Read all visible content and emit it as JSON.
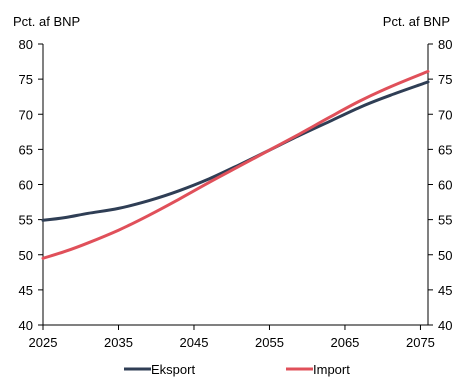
{
  "chart_data": {
    "type": "line",
    "ylabel_left": "Pct. af BNP",
    "ylabel_right": "Pct. af BNP",
    "xlim": [
      2025,
      2076
    ],
    "ylim": [
      40,
      80
    ],
    "x_ticks": [
      2025,
      2035,
      2045,
      2055,
      2065,
      2075
    ],
    "y_ticks": [
      40,
      45,
      50,
      55,
      60,
      65,
      70,
      75,
      80
    ],
    "grid": false,
    "legend_position": "bottom",
    "series": [
      {
        "name": "Eksport",
        "color": "#2f3e55",
        "x": [
          2025,
          2028,
          2031,
          2035,
          2039,
          2043,
          2047,
          2051,
          2055,
          2059,
          2063,
          2067,
          2071,
          2076
        ],
        "values": [
          54.9,
          55.3,
          55.9,
          56.6,
          57.7,
          59.1,
          60.8,
          62.8,
          64.9,
          67.0,
          69.0,
          71.0,
          72.7,
          74.6
        ]
      },
      {
        "name": "Import",
        "color": "#e0505a",
        "x": [
          2025,
          2028,
          2031,
          2035,
          2039,
          2043,
          2047,
          2051,
          2055,
          2059,
          2063,
          2067,
          2071,
          2076
        ],
        "values": [
          49.5,
          50.5,
          51.7,
          53.5,
          55.6,
          57.9,
          60.3,
          62.6,
          64.9,
          67.2,
          69.6,
          71.9,
          73.9,
          76.1
        ]
      }
    ]
  }
}
